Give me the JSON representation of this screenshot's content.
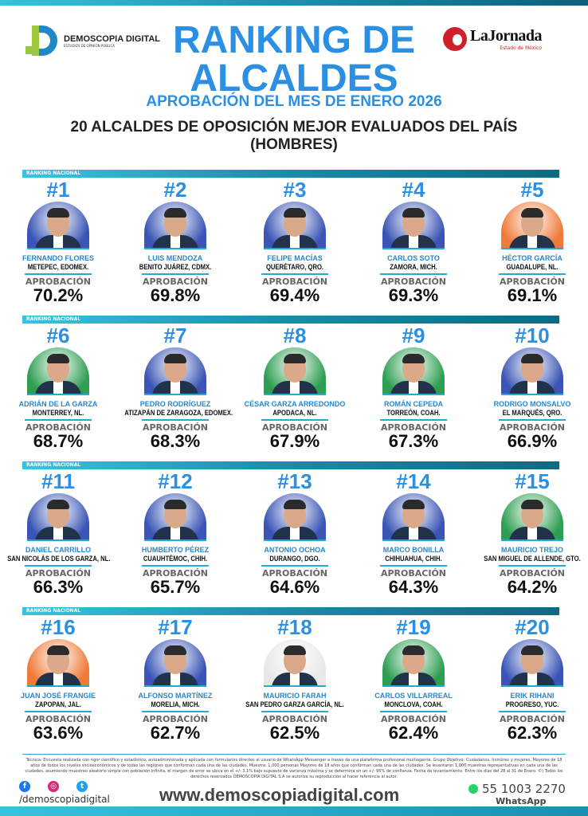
{
  "header": {
    "brand_left": "DEMOSCOPIA DIGITAL",
    "brand_left_tag": "ESTUDIOS DE OPINIÓN PÚBLICA",
    "brand_right": "LaJornada",
    "brand_right_tag": "Estado de México",
    "title_line1": "RANKING DE",
    "title_line2": "ALCALDES",
    "subtitle": "APROBACIÓN DEL MES DE ENERO 2026",
    "heading": "20 ALCALDES DE OPOSICIÓN MEJOR EVALUADOS DEL PAÍS",
    "heading2": "(HOMBRES)"
  },
  "section_label": "RANKING NACIONAL",
  "approval_label": "APROBACIÓN",
  "colors": {
    "accent": "#2b8fe3",
    "teal": "#2aa9cf",
    "pan": "#3a55b5",
    "pri": "#2e9e52",
    "mc": "#f07a3a",
    "white": "#e8e8e8"
  },
  "mayors": [
    {
      "rank": "#1",
      "name": "FERNANDO FLORES",
      "city": "METEPEC, EDOMEX.",
      "approval": "70.2%",
      "bg": "pan"
    },
    {
      "rank": "#2",
      "name": "LUIS MENDOZA",
      "city": "BENITO JUÁREZ, CDMX.",
      "approval": "69.8%",
      "bg": "pan"
    },
    {
      "rank": "#3",
      "name": "FELIPE MACÍAS",
      "city": "QUERÉTARO, QRO.",
      "approval": "69.4%",
      "bg": "pan"
    },
    {
      "rank": "#4",
      "name": "CARLOS SOTO",
      "city": "ZAMORA, MICH.",
      "approval": "69.3%",
      "bg": "pan"
    },
    {
      "rank": "#5",
      "name": "HÉCTOR GARCÍA",
      "city": "GUADALUPE, NL.",
      "approval": "69.1%",
      "bg": "mc"
    },
    {
      "rank": "#6",
      "name": "ADRIÁN DE LA GARZA",
      "city": "MONTERREY, NL.",
      "approval": "68.7%",
      "bg": "pri"
    },
    {
      "rank": "#7",
      "name": "PEDRO RODRÍGUEZ",
      "city": "ATIZAPÁN DE ZARAGOZA, EDOMEX.",
      "approval": "68.3%",
      "bg": "pan"
    },
    {
      "rank": "#8",
      "name": "CÉSAR GARZA ARREDONDO",
      "city": "APODACA, NL.",
      "approval": "67.9%",
      "bg": "pri"
    },
    {
      "rank": "#9",
      "name": "ROMÁN CEPEDA",
      "city": "TORREÓN, COAH.",
      "approval": "67.3%",
      "bg": "pri"
    },
    {
      "rank": "#10",
      "name": "RODRIGO MONSALVO",
      "city": "EL MARQUÉS, QRO.",
      "approval": "66.9%",
      "bg": "pan"
    },
    {
      "rank": "#11",
      "name": "DANIEL CARRILLO",
      "city": "SAN NICOLÁS DE LOS GARZA, NL.",
      "approval": "66.3%",
      "bg": "pan"
    },
    {
      "rank": "#12",
      "name": "HUMBERTO PÉREZ",
      "city": "CUAUHTÉMOC, CHIH.",
      "approval": "65.7%",
      "bg": "pan"
    },
    {
      "rank": "#13",
      "name": "ANTONIO OCHOA",
      "city": "DURANGO, DGO.",
      "approval": "64.6%",
      "bg": "pan"
    },
    {
      "rank": "#14",
      "name": "MARCO BONILLA",
      "city": "CHIHUAHUA, CHIH.",
      "approval": "64.3%",
      "bg": "pan"
    },
    {
      "rank": "#15",
      "name": "MAURICIO TREJO",
      "city": "SAN MIGUEL DE ALLENDE, GTO.",
      "approval": "64.2%",
      "bg": "pri"
    },
    {
      "rank": "#16",
      "name": "JUAN JOSÉ FRANGIE",
      "city": "ZAPOPAN, JAL.",
      "approval": "63.6%",
      "bg": "mc"
    },
    {
      "rank": "#17",
      "name": "ALFONSO MARTÍNEZ",
      "city": "MORELIA, MICH.",
      "approval": "62.7%",
      "bg": "pan"
    },
    {
      "rank": "#18",
      "name": "MAURICIO FARAH",
      "city": "SAN PEDRO GARZA GARCÍA, NL.",
      "approval": "62.5%",
      "bg": "white"
    },
    {
      "rank": "#19",
      "name": "CARLOS VILLARREAL",
      "city": "MONCLOVA, COAH.",
      "approval": "62.4%",
      "bg": "pri"
    },
    {
      "rank": "#20",
      "name": "ERIK RIHANI",
      "city": "PROGRESO, YUC.",
      "approval": "62.3%",
      "bg": "pan"
    }
  ],
  "footer": {
    "methodology": "Técnica: Encuesta realizada con rigor científico y estadístico, autoadministrada y aplicada con formularios directos al usuario de WhatsApp Messenger a través de una plataforma profesional multiagente. Grupo Objetivo: Ciudadanos, hombres y mujeres, Mayores de 18 años de todos los niveles socioeconómicos y de todas las regiones que conforman cada una de las ciudades. Muestra: 1,000 personas Mayores de 18 años que conforman cada una de las ciudades. Se levantaron 1,000 muestras representativas en cada una de las ciudades, asumiendo muestreo aleatorio simple con población infinita, el margen de error se ubica en el +/- 3.1% bajo supuesto de varianza máxima y se determina en un +/- 95% de confianza. Fecha de levantamiento: Entre los días del 28 al 31 de Enero. ©) Todos los derechos reservados DEMOSCOPIA DIGITAL S.A se autoriza su reproducción al hacer referencia al autor.",
    "social_handle": "/demoscopiadigital",
    "website": "www.demoscopiadigital.com",
    "phone": "55 1003 2270",
    "phone_label": "WhatsApp"
  }
}
